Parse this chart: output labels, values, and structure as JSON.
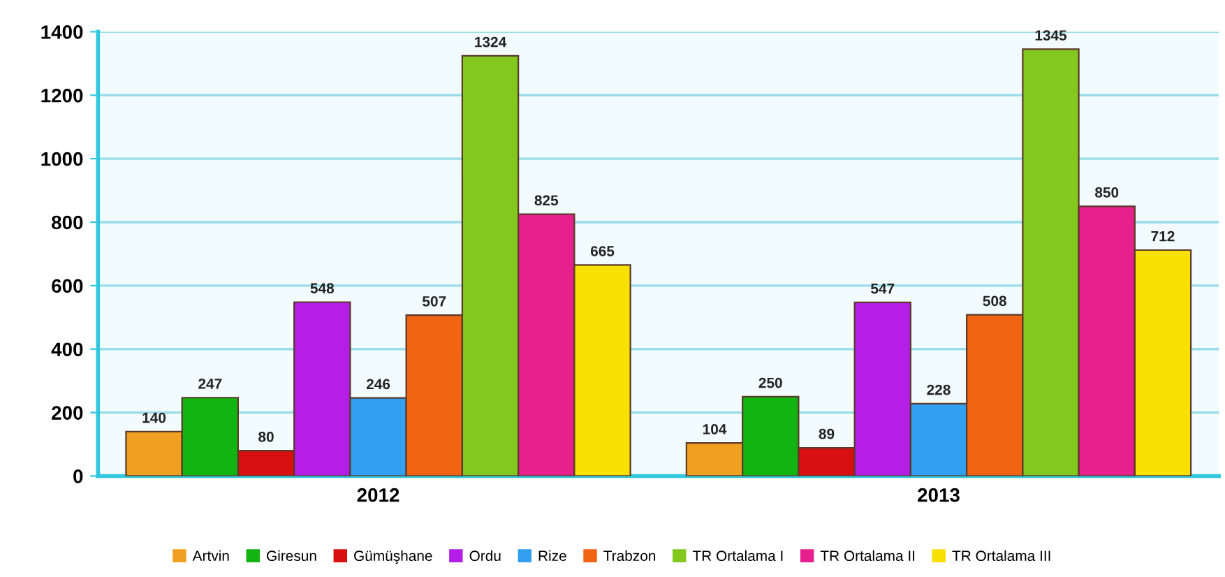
{
  "chart_data": {
    "type": "bar",
    "categories": [
      "2012",
      "2013"
    ],
    "series": [
      {
        "name": "Artvin",
        "color": "#f0a020",
        "values": [
          140,
          104
        ]
      },
      {
        "name": "Giresun",
        "color": "#12b412",
        "values": [
          247,
          250
        ]
      },
      {
        "name": "Gümüşhane",
        "color": "#d81010",
        "values": [
          80,
          89
        ]
      },
      {
        "name": "Ordu",
        "color": "#b41ee6",
        "values": [
          548,
          547
        ]
      },
      {
        "name": "Rize",
        "color": "#32a0f0",
        "values": [
          246,
          228
        ]
      },
      {
        "name": "Trabzon",
        "color": "#f06414",
        "values": [
          507,
          508
        ]
      },
      {
        "name": "TR Ortalama I",
        "color": "#82c81e",
        "values": [
          1324,
          1345
        ]
      },
      {
        "name": "TR Ortalama II",
        "color": "#e6208c",
        "values": [
          825,
          850
        ]
      },
      {
        "name": "TR Ortalama III",
        "color": "#f8e000",
        "values": [
          665,
          712
        ]
      }
    ],
    "ylim": [
      0,
      1400
    ],
    "yticks": [
      0,
      200,
      400,
      600,
      800,
      1000,
      1200,
      1400
    ],
    "grid": "y",
    "legend": "bottom",
    "data_labels": true
  }
}
